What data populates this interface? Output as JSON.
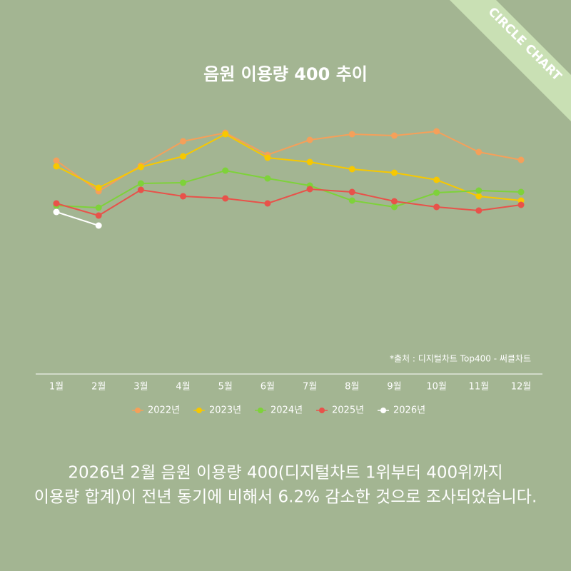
{
  "chart_data": {
    "type": "line",
    "title": "음원 이용량 400 추이",
    "source": "*출처 : 디지털차트 Top400 - 써클차트",
    "categories": [
      "1월",
      "2월",
      "3월",
      "4월",
      "5월",
      "6월",
      "7월",
      "8월",
      "9월",
      "10월",
      "11월",
      "12월"
    ],
    "ylim": [
      0,
      400
    ],
    "series": [
      {
        "name": "2022년",
        "color": "#f5a05a",
        "values": [
          299,
          256,
          292,
          326,
          338,
          307,
          328,
          336,
          334,
          340,
          311,
          300
        ]
      },
      {
        "name": "2023년",
        "color": "#f7c800",
        "values": [
          291,
          261,
          290,
          305,
          336,
          303,
          297,
          287,
          282,
          272,
          249,
          243
        ]
      },
      {
        "name": "2024년",
        "color": "#7ed23a",
        "values": [
          236,
          233,
          267,
          268,
          285,
          274,
          264,
          243,
          234,
          254,
          257,
          255
        ]
      },
      {
        "name": "2025년",
        "color": "#e8524a",
        "values": [
          239,
          222,
          258,
          249,
          246,
          239,
          259,
          255,
          242,
          234,
          229,
          237
        ]
      },
      {
        "name": "2026년",
        "color": "#ffffff",
        "values": [
          227,
          208,
          null,
          null,
          null,
          null,
          null,
          null,
          null,
          null,
          null,
          null
        ]
      }
    ]
  },
  "ribbon": "CIRCLE CHART",
  "footer": [
    "2026년 2월 음원 이용량 400(디지털차트 1위부터 400위까지",
    "이용량 합계)이 전년 동기에 비해서 6.2% 감소한 것으로 조사되었습니다."
  ]
}
